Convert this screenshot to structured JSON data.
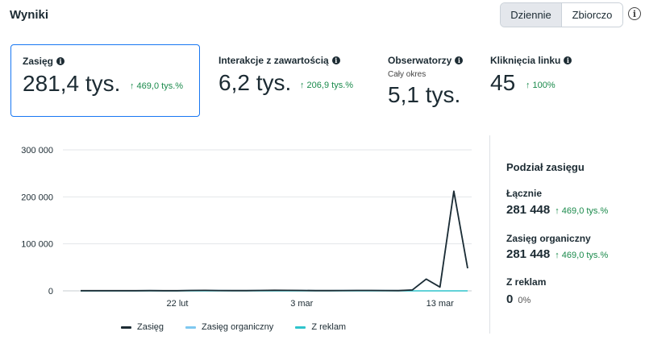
{
  "header": {
    "title": "Wyniki",
    "toggle": [
      "Dziennie",
      "Zbiorczo"
    ],
    "toggle_active": "Dziennie",
    "info_icon": "info-circle-icon"
  },
  "metrics": [
    {
      "label": "Zasięg",
      "sublabel": "",
      "value": "281,4 tys.",
      "delta": "↑ 469,0 tys.%",
      "selected": true
    },
    {
      "label": "Interakcje z zawartością",
      "sublabel": "",
      "value": "6,2 tys.",
      "delta": "↑ 206,9 tys.%",
      "selected": false
    },
    {
      "label": "Obserwatorzy",
      "sublabel": "Cały okres",
      "value": "5,1 tys.",
      "delta": "",
      "selected": false
    },
    {
      "label": "Kliknięcia linku",
      "sublabel": "",
      "value": "45",
      "delta": "↑ 100%",
      "selected": false
    }
  ],
  "chart_data": {
    "type": "line",
    "y_ticks": [
      "300 000",
      "200 000",
      "100 000",
      "0"
    ],
    "ylim": [
      0,
      300000
    ],
    "x_tick_labels": [
      "22 lut",
      "3 mar",
      "13 mar"
    ],
    "x_tick_index": [
      7,
      16,
      26
    ],
    "series": [
      {
        "name": "Zasięg",
        "color": "#1c2b33",
        "values": [
          400,
          300,
          350,
          300,
          400,
          450,
          400,
          350,
          900,
          1000,
          700,
          600,
          500,
          900,
          1200,
          1000,
          800,
          600,
          500,
          700,
          900,
          800,
          700,
          600,
          1800,
          25000,
          8000,
          212000,
          48000
        ]
      },
      {
        "name": "Zasięg organiczny",
        "color": "#7fc8f0",
        "values": [
          400,
          300,
          350,
          300,
          400,
          450,
          400,
          350,
          900,
          1000,
          700,
          600,
          500,
          900,
          1200,
          1000,
          800,
          600,
          500,
          700,
          900,
          800,
          700,
          600,
          1800,
          25000,
          8000,
          212000,
          48000
        ]
      },
      {
        "name": "Z reklam",
        "color": "#2fc4cc",
        "values": [
          0,
          0,
          0,
          0,
          0,
          0,
          0,
          0,
          0,
          0,
          0,
          0,
          0,
          0,
          0,
          0,
          0,
          0,
          0,
          0,
          0,
          0,
          0,
          0,
          0,
          0,
          0,
          0,
          0
        ]
      }
    ]
  },
  "legend": [
    {
      "label": "Zasięg",
      "color": "#1c2b33"
    },
    {
      "label": "Zasięg organiczny",
      "color": "#7fc8f0"
    },
    {
      "label": "Z reklam",
      "color": "#2fc4cc"
    }
  ],
  "breakdown": {
    "title": "Podział zasięgu",
    "rows": [
      {
        "label": "Łącznie",
        "value": "281 448",
        "delta": "↑ 469,0 tys.%"
      },
      {
        "label": "Zasięg organiczny",
        "value": "281 448",
        "delta": "↑ 469,0 tys.%"
      },
      {
        "label": "Z reklam",
        "value": "0",
        "delta": "0%"
      }
    ]
  }
}
